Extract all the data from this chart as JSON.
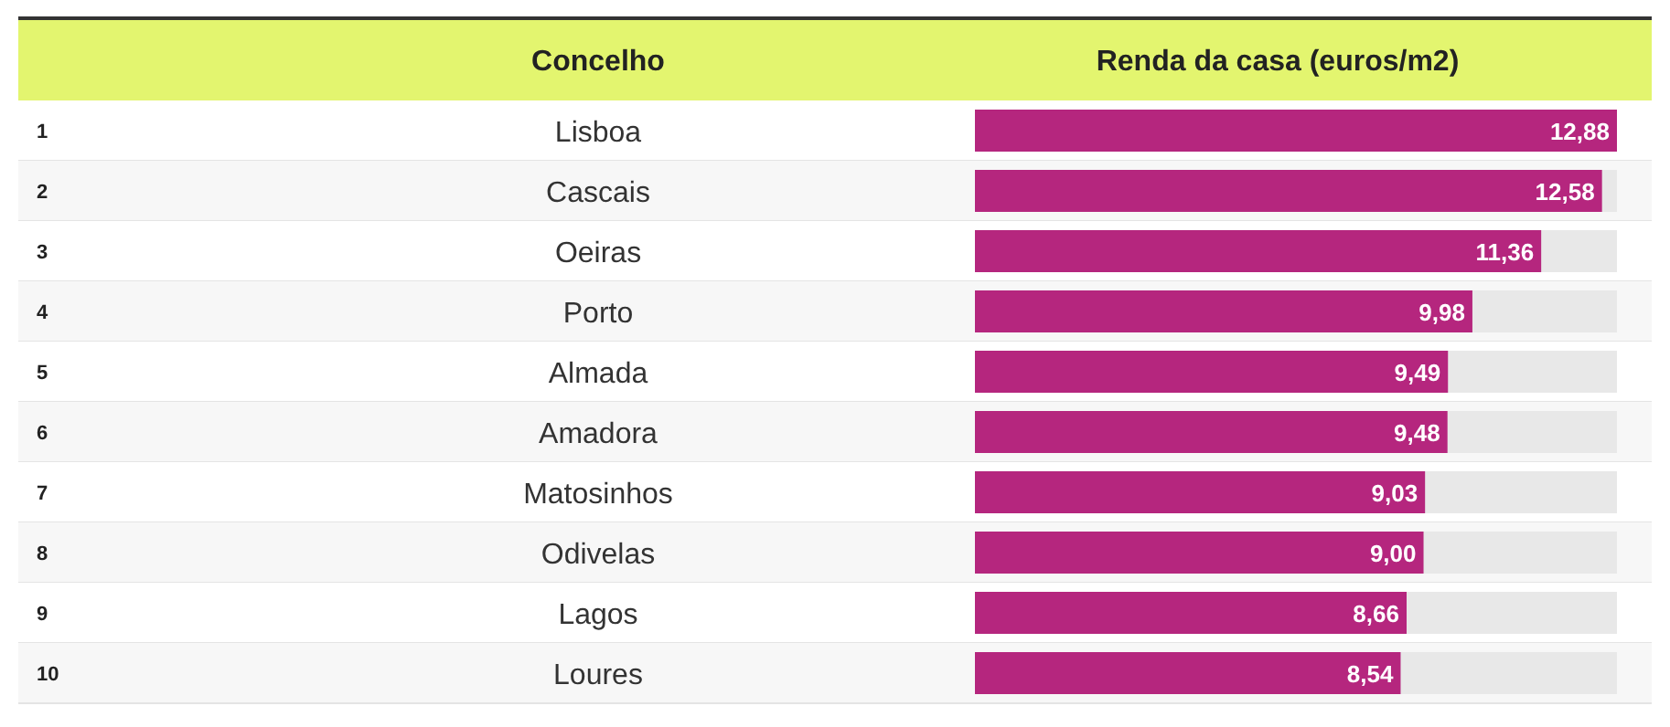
{
  "chart_data": {
    "type": "bar",
    "orientation": "horizontal",
    "ylabel": "Concelho",
    "xlabel": "Renda da casa (euros/m2)",
    "categories": [
      "Lisboa",
      "Cascais",
      "Oeiras",
      "Porto",
      "Almada",
      "Amadora",
      "Matosinhos",
      "Odivelas",
      "Lagos",
      "Loures"
    ],
    "values": [
      12.88,
      12.58,
      11.36,
      9.98,
      9.49,
      9.48,
      9.03,
      9.0,
      8.66,
      8.54
    ],
    "value_labels": [
      "12,88",
      "12,58",
      "11,36",
      "9,98",
      "9,49",
      "9,48",
      "9,03",
      "9,00",
      "8,66",
      "8,54"
    ],
    "color": "#b5267e",
    "annotations": [
      "1",
      "2",
      "3",
      "4",
      "5",
      "6",
      "7",
      "8",
      "9",
      "10"
    ]
  }
}
